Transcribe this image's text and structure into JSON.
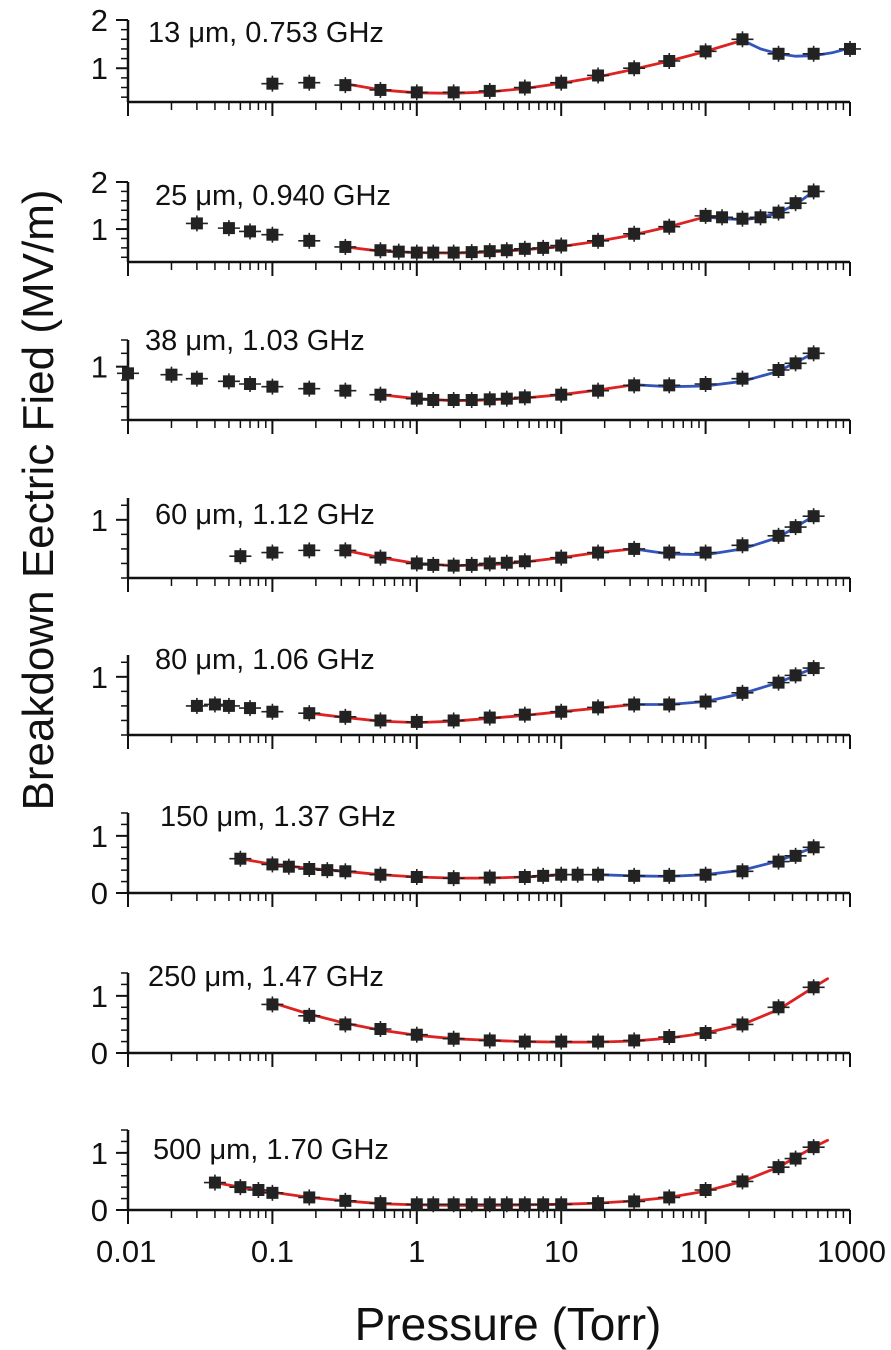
{
  "figure": {
    "ylabel": "Breakdown Eectric Fied (MV/m)",
    "xlabel": "Pressure (Torr)",
    "x_ticks": [
      "0.01",
      "0.1",
      "1",
      "10",
      "100",
      "1000"
    ],
    "colors": {
      "points": "#222222",
      "fit_low": "#dd2222",
      "fit_high": "#3355bb",
      "axis": "#111111"
    }
  },
  "chart_data": [
    {
      "type": "scatter",
      "title": "13 μm, 0.753 GHz",
      "xscale": "log",
      "xlim": [
        0.01,
        1000
      ],
      "ylim": [
        0.3,
        2.0
      ],
      "ytick_labels": [
        "1",
        "2"
      ],
      "ytick_values": [
        1,
        2
      ],
      "x": [
        0.1,
        0.18,
        0.32,
        0.56,
        1.0,
        1.8,
        3.2,
        5.6,
        10,
        18,
        32,
        56,
        100,
        180,
        320,
        560,
        1000
      ],
      "y": [
        0.68,
        0.7,
        0.65,
        0.55,
        0.5,
        0.5,
        0.53,
        0.6,
        0.7,
        0.85,
        1.0,
        1.15,
        1.35,
        1.6,
        1.3,
        1.3,
        1.4
      ],
      "fits": [
        {
          "color": "fit_low",
          "x": [
            0.32,
            0.56,
            1.0,
            1.8,
            3.2,
            5.6,
            10,
            18,
            32,
            56,
            100,
            180
          ],
          "y": [
            0.68,
            0.55,
            0.49,
            0.48,
            0.51,
            0.58,
            0.69,
            0.82,
            0.98,
            1.15,
            1.35,
            1.58
          ]
        },
        {
          "color": "fit_high",
          "x": [
            180,
            240,
            320,
            420,
            560,
            750,
            1000
          ],
          "y": [
            1.58,
            1.4,
            1.3,
            1.25,
            1.26,
            1.32,
            1.42
          ]
        }
      ]
    },
    {
      "type": "scatter",
      "title": "25 μm, 0.940 GHz",
      "xscale": "log",
      "xlim": [
        0.01,
        1000
      ],
      "ylim": [
        0.3,
        2.0
      ],
      "ytick_labels": [
        "1",
        "2"
      ],
      "ytick_values": [
        1,
        2
      ],
      "x": [
        0.03,
        0.05,
        0.07,
        0.1,
        0.18,
        0.32,
        0.56,
        0.75,
        1.0,
        1.3,
        1.8,
        2.4,
        3.2,
        4.2,
        5.6,
        7.5,
        10,
        18,
        32,
        56,
        100,
        130,
        180,
        240,
        320,
        420,
        560
      ],
      "y": [
        1.12,
        1.02,
        0.95,
        0.88,
        0.75,
        0.62,
        0.55,
        0.52,
        0.5,
        0.5,
        0.5,
        0.51,
        0.53,
        0.55,
        0.58,
        0.6,
        0.65,
        0.75,
        0.9,
        1.05,
        1.28,
        1.25,
        1.22,
        1.25,
        1.35,
        1.55,
        1.8
      ],
      "fits": [
        {
          "color": "fit_low",
          "x": [
            0.32,
            0.56,
            1.0,
            1.8,
            3.2,
            5.6,
            10,
            18,
            32,
            56,
            100
          ],
          "y": [
            0.62,
            0.53,
            0.5,
            0.49,
            0.51,
            0.56,
            0.63,
            0.74,
            0.88,
            1.05,
            1.26
          ]
        },
        {
          "color": "fit_high",
          "x": [
            100,
            130,
            180,
            240,
            320,
            420,
            560
          ],
          "y": [
            1.26,
            1.22,
            1.2,
            1.24,
            1.35,
            1.52,
            1.8
          ]
        }
      ]
    },
    {
      "type": "scatter",
      "title": "38 μm, 1.03 GHz",
      "xscale": "log",
      "xlim": [
        0.01,
        1000
      ],
      "ylim": [
        0.2,
        1.4
      ],
      "ytick_labels": [
        "1"
      ],
      "ytick_values": [
        1
      ],
      "x": [
        0.01,
        0.02,
        0.03,
        0.05,
        0.07,
        0.1,
        0.18,
        0.32,
        0.56,
        1.0,
        1.3,
        1.8,
        2.4,
        3.2,
        4.2,
        5.6,
        10,
        18,
        32,
        56,
        100,
        180,
        320,
        420,
        560
      ],
      "y": [
        0.9,
        0.88,
        0.82,
        0.78,
        0.74,
        0.7,
        0.67,
        0.64,
        0.58,
        0.52,
        0.5,
        0.5,
        0.5,
        0.51,
        0.52,
        0.54,
        0.58,
        0.64,
        0.72,
        0.72,
        0.74,
        0.82,
        0.95,
        1.05,
        1.2
      ],
      "fits": [
        {
          "color": "fit_low",
          "x": [
            0.56,
            1.0,
            1.8,
            3.2,
            5.6,
            10,
            18,
            32
          ],
          "y": [
            0.58,
            0.52,
            0.49,
            0.5,
            0.53,
            0.58,
            0.65,
            0.73
          ]
        },
        {
          "color": "fit_high",
          "x": [
            32,
            56,
            100,
            180,
            320,
            560
          ],
          "y": [
            0.73,
            0.7,
            0.71,
            0.78,
            0.93,
            1.2
          ]
        }
      ]
    },
    {
      "type": "scatter",
      "title": "60 μm, 1.12 GHz",
      "xscale": "log",
      "xlim": [
        0.01,
        1000
      ],
      "ylim": [
        0.2,
        1.3
      ],
      "ytick_labels": [
        "1"
      ],
      "ytick_values": [
        1
      ],
      "x": [
        0.06,
        0.1,
        0.18,
        0.32,
        0.56,
        1.0,
        1.3,
        1.8,
        2.4,
        3.2,
        4.2,
        5.6,
        10,
        18,
        32,
        56,
        100,
        180,
        320,
        420,
        560
      ],
      "y": [
        0.5,
        0.55,
        0.58,
        0.58,
        0.48,
        0.4,
        0.38,
        0.37,
        0.38,
        0.4,
        0.41,
        0.43,
        0.48,
        0.55,
        0.6,
        0.55,
        0.55,
        0.65,
        0.78,
        0.9,
        1.05
      ],
      "fits": [
        {
          "color": "fit_low",
          "x": [
            0.32,
            0.56,
            1.0,
            1.8,
            3.2,
            5.6,
            10,
            18,
            32
          ],
          "y": [
            0.58,
            0.48,
            0.4,
            0.37,
            0.38,
            0.42,
            0.48,
            0.55,
            0.6
          ]
        },
        {
          "color": "fit_high",
          "x": [
            32,
            56,
            100,
            180,
            320,
            560
          ],
          "y": [
            0.6,
            0.53,
            0.52,
            0.6,
            0.76,
            1.05
          ]
        }
      ]
    },
    {
      "type": "scatter",
      "title": "80 μm, 1.06 GHz",
      "xscale": "log",
      "xlim": [
        0.01,
        1000
      ],
      "ylim": [
        0.2,
        1.3
      ],
      "ytick_labels": [
        "1"
      ],
      "ytick_values": [
        1
      ],
      "x": [
        0.03,
        0.04,
        0.05,
        0.07,
        0.1,
        0.18,
        0.32,
        0.56,
        1.0,
        1.8,
        3.2,
        5.6,
        10,
        18,
        32,
        56,
        100,
        180,
        320,
        420,
        560
      ],
      "y": [
        0.6,
        0.62,
        0.6,
        0.57,
        0.52,
        0.5,
        0.45,
        0.4,
        0.38,
        0.4,
        0.44,
        0.48,
        0.52,
        0.58,
        0.62,
        0.62,
        0.66,
        0.78,
        0.92,
        1.02,
        1.12
      ],
      "fits": [
        {
          "color": "fit_low",
          "x": [
            0.18,
            0.32,
            0.56,
            1.0,
            1.8,
            3.2,
            5.6,
            10,
            18,
            32
          ],
          "y": [
            0.5,
            0.44,
            0.39,
            0.37,
            0.39,
            0.43,
            0.47,
            0.52,
            0.57,
            0.62
          ]
        },
        {
          "color": "fit_high",
          "x": [
            32,
            56,
            100,
            180,
            320,
            560
          ],
          "y": [
            0.62,
            0.62,
            0.66,
            0.77,
            0.92,
            1.12
          ]
        }
      ]
    },
    {
      "type": "scatter",
      "title": "150 μm, 1.37 GHz",
      "xscale": "log",
      "xlim": [
        0.01,
        1000
      ],
      "ylim": [
        0,
        1.4
      ],
      "ytick_labels": [
        "0",
        "1"
      ],
      "ytick_values": [
        0,
        1
      ],
      "x": [
        0.06,
        0.1,
        0.13,
        0.18,
        0.24,
        0.32,
        0.56,
        1.0,
        1.8,
        3.2,
        5.6,
        7.5,
        10,
        13,
        18,
        32,
        56,
        100,
        180,
        320,
        420,
        560
      ],
      "y": [
        0.6,
        0.5,
        0.46,
        0.42,
        0.4,
        0.38,
        0.32,
        0.28,
        0.26,
        0.27,
        0.28,
        0.3,
        0.32,
        0.32,
        0.32,
        0.3,
        0.3,
        0.32,
        0.38,
        0.55,
        0.65,
        0.8
      ],
      "fits": [
        {
          "color": "fit_low",
          "x": [
            0.06,
            0.1,
            0.18,
            0.32,
            0.56,
            1.0,
            1.8,
            3.2,
            5.6,
            10
          ],
          "y": [
            0.6,
            0.5,
            0.43,
            0.38,
            0.32,
            0.28,
            0.26,
            0.26,
            0.28,
            0.32
          ]
        },
        {
          "color": "fit_high",
          "x": [
            18,
            32,
            56,
            100,
            180,
            320,
            560
          ],
          "y": [
            0.32,
            0.3,
            0.29,
            0.32,
            0.4,
            0.56,
            0.8
          ]
        }
      ]
    },
    {
      "type": "scatter",
      "title": "250 μm, 1.47 GHz",
      "xscale": "log",
      "xlim": [
        0.01,
        1000
      ],
      "ylim": [
        0,
        1.4
      ],
      "ytick_labels": [
        "0",
        "1"
      ],
      "ytick_values": [
        0,
        1
      ],
      "x": [
        0.1,
        0.18,
        0.32,
        0.56,
        1.0,
        1.8,
        3.2,
        5.6,
        10,
        18,
        32,
        56,
        100,
        180,
        320,
        560
      ],
      "y": [
        0.85,
        0.65,
        0.5,
        0.42,
        0.32,
        0.25,
        0.22,
        0.2,
        0.2,
        0.2,
        0.22,
        0.28,
        0.35,
        0.5,
        0.8,
        1.15
      ],
      "fits": [
        {
          "color": "fit_low",
          "x": [
            0.1,
            0.18,
            0.32,
            0.56,
            1.0,
            1.8,
            3.2,
            5.6,
            10,
            18,
            32,
            56,
            100,
            180,
            320,
            560,
            700
          ],
          "y": [
            0.88,
            0.68,
            0.52,
            0.4,
            0.31,
            0.25,
            0.22,
            0.2,
            0.19,
            0.19,
            0.21,
            0.26,
            0.35,
            0.5,
            0.76,
            1.15,
            1.3
          ]
        }
      ]
    },
    {
      "type": "scatter",
      "title": "500 μm, 1.70 GHz",
      "xscale": "log",
      "xlim": [
        0.01,
        1000
      ],
      "ylim": [
        0,
        1.4
      ],
      "ytick_labels": [
        "0",
        "1"
      ],
      "ytick_values": [
        0,
        1
      ],
      "x": [
        0.04,
        0.06,
        0.08,
        0.1,
        0.18,
        0.32,
        0.56,
        1.0,
        1.3,
        1.8,
        2.4,
        3.2,
        4.2,
        5.6,
        7.5,
        10,
        18,
        32,
        56,
        100,
        180,
        320,
        420,
        560
      ],
      "y": [
        0.48,
        0.4,
        0.35,
        0.3,
        0.22,
        0.16,
        0.12,
        0.1,
        0.1,
        0.1,
        0.1,
        0.1,
        0.1,
        0.1,
        0.1,
        0.1,
        0.12,
        0.15,
        0.22,
        0.35,
        0.5,
        0.75,
        0.9,
        1.1
      ],
      "fits": [
        {
          "color": "fit_low",
          "x": [
            0.04,
            0.06,
            0.1,
            0.18,
            0.32,
            0.56,
            1.0,
            1.8,
            3.2,
            5.6,
            10,
            18,
            32,
            56,
            100,
            180,
            320,
            560,
            700
          ],
          "y": [
            0.48,
            0.4,
            0.31,
            0.22,
            0.16,
            0.11,
            0.09,
            0.08,
            0.08,
            0.09,
            0.1,
            0.12,
            0.16,
            0.22,
            0.33,
            0.5,
            0.75,
            1.1,
            1.22
          ]
        }
      ]
    }
  ]
}
